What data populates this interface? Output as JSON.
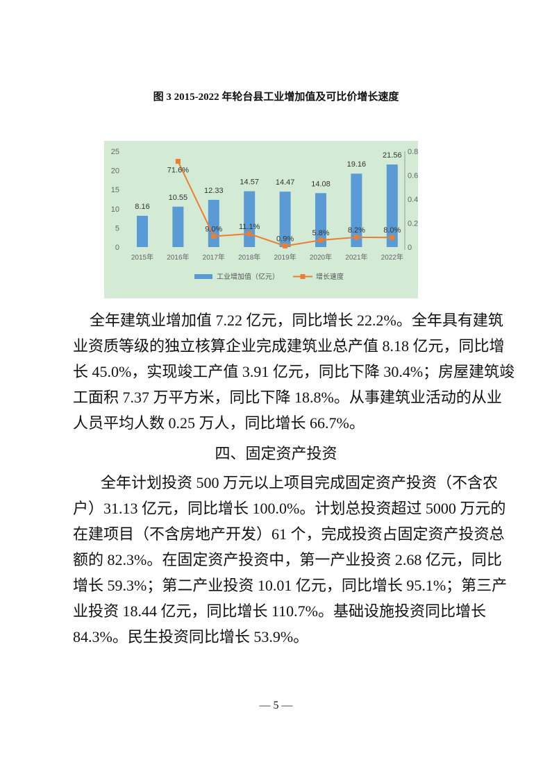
{
  "figure_title": "图 3 2015-2022 年轮台县工业增加值及可比价增长速度",
  "chart_data": {
    "type": "bar+line",
    "title": "图 3 2015-2022 年轮台县工业增加值及可比价增长速度",
    "categories": [
      "2015年",
      "2016年",
      "2017年",
      "2018年",
      "2019年",
      "2020年",
      "2021年",
      "2022年"
    ],
    "series": [
      {
        "name": "工业增加值（亿元）",
        "type": "bar",
        "axis": "left",
        "color": "#5b9bd5",
        "values": [
          8.16,
          10.55,
          12.33,
          14.57,
          14.47,
          14.08,
          19.16,
          21.56
        ],
        "labels": [
          "8.16",
          "10.55",
          "12.33",
          "14.57",
          "14.47",
          "14.08",
          "19.16",
          "21.56"
        ]
      },
      {
        "name": "增长速度",
        "type": "line",
        "axis": "right",
        "color": "#ed7d31",
        "values": [
          null,
          0.716,
          0.09,
          0.111,
          0.009,
          0.058,
          0.082,
          0.08
        ],
        "labels": [
          "",
          "71.6%",
          "9.0%",
          "11.1%",
          "0.9%",
          "5.8%",
          "8.2%",
          "8.0%"
        ]
      }
    ],
    "y_left": {
      "range": [
        0,
        25
      ],
      "ticks": [
        "0",
        "5",
        "10",
        "15",
        "20",
        "25"
      ]
    },
    "y_right": {
      "range": [
        0,
        0.8
      ],
      "ticks": [
        "0",
        "0.2",
        "0.4",
        "0.6",
        "0.8"
      ]
    },
    "grid": false,
    "legend": "bottom",
    "background": "#d3ead5"
  },
  "paragraph1": [
    "全年建筑业增加值 7.22 亿元，同比增长 22.2%。全年具有建筑",
    "业资质等级的独立核算企业完成建筑业总产值 8.18 亿元，同比增",
    "长 45.0%，实现竣工产值 3.91 亿元，同比下降 30.4%；房屋建筑竣",
    "工面积 7.37 万平方米，同比下降 18.8%。从事建筑业活动的从业",
    "人员平均人数 0.25 万人，同比增长 66.7%。"
  ],
  "section_heading": "四、固定资产投资",
  "paragraph2": [
    "全年计划投资 500 万元以上项目完成固定资产投资（不含农",
    "户）31.13 亿元，同比增长 100.0%。计划总投资超过 5000 万元的",
    "在建项目（不含房地产开发）61 个，完成投资占固定资产投资总",
    "额的 82.3%。在固定资产投资中，第一产业投资 2.68 亿元，同比",
    "增长 59.3%；第二产业投资 10.01 亿元，同比增长 95.1%；第三产",
    "业投资 18.44 亿元，同比增长 110.7%。基础设施投资同比增长",
    "84.3%。民生投资同比增长 53.9%。"
  ],
  "page_number": "— 5 —"
}
